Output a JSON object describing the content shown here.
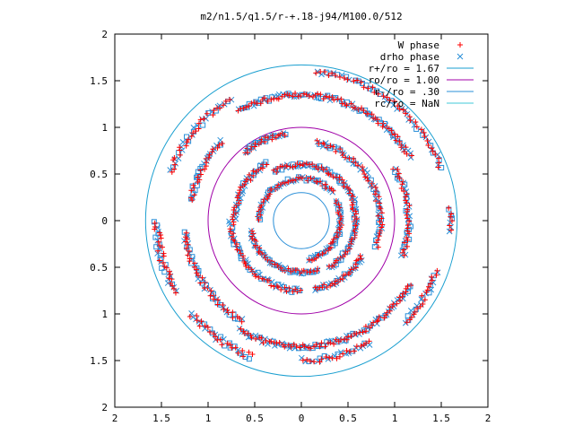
{
  "chart_data": {
    "type": "scatter",
    "title": "m2/n1.5/q1.5/r-+.18-j94/M100.0/512",
    "xlabel": "",
    "ylabel": "",
    "xlim": [
      2,
      -2
    ],
    "ylim": [
      -2,
      2
    ],
    "x_ticks": [
      {
        "value": 2,
        "label": "2"
      },
      {
        "value": 1.5,
        "label": "1.5"
      },
      {
        "value": 1,
        "label": "1"
      },
      {
        "value": 0.5,
        "label": "0.5"
      },
      {
        "value": 0,
        "label": "0"
      },
      {
        "value": -0.5,
        "label": "0.5"
      },
      {
        "value": -1,
        "label": "1"
      },
      {
        "value": -1.5,
        "label": "1.5"
      },
      {
        "value": -2,
        "label": "2"
      }
    ],
    "y_ticks": [
      {
        "value": 2,
        "label": "2"
      },
      {
        "value": 1.5,
        "label": "1.5"
      },
      {
        "value": 1,
        "label": "1"
      },
      {
        "value": 0.5,
        "label": "0.5"
      },
      {
        "value": 0,
        "label": "0"
      },
      {
        "value": -0.5,
        "label": "0.5"
      },
      {
        "value": -1,
        "label": "1"
      },
      {
        "value": -1.5,
        "label": "1.5"
      },
      {
        "value": -2,
        "label": "2"
      }
    ],
    "grid": false,
    "legend_position": "top-right",
    "series": [
      {
        "name": "W phase",
        "kind": "points",
        "marker": "plus",
        "color": "#ff0000"
      },
      {
        "name": "drho phase",
        "kind": "points",
        "marker": "cross",
        "color": "#2a8fd8"
      },
      {
        "name": "r+/ro = 1.67",
        "kind": "circle",
        "radius": 1.67,
        "color": "#1a9fd0"
      },
      {
        "name": "ro/ro = 1.00",
        "kind": "circle",
        "radius": 1.0,
        "color": "#a000a8"
      },
      {
        "name": "r-/ro = .30",
        "kind": "circle",
        "radius": 0.3,
        "color": "#2a8fd8"
      },
      {
        "name": "rc/ro = NaN",
        "kind": "circle",
        "radius": null,
        "color": "#40c8d8"
      }
    ],
    "point_bands": [
      {
        "r": 1.6,
        "a0": 95,
        "a1": 160,
        "n": 40,
        "j": 0.05
      },
      {
        "r": 1.6,
        "a0": 175,
        "a1": 185,
        "n": 6,
        "j": 0.04
      },
      {
        "r": 1.55,
        "a0": 200,
        "a1": 225,
        "n": 18,
        "j": 0.06
      },
      {
        "r": 1.5,
        "a0": 240,
        "a1": 270,
        "n": 20,
        "j": 0.06
      },
      {
        "r": 1.55,
        "a0": 290,
        "a1": 320,
        "n": 22,
        "j": 0.07
      },
      {
        "r": 1.55,
        "a0": 330,
        "a1": 360,
        "n": 24,
        "j": 0.07
      },
      {
        "r": 1.5,
        "a0": 20,
        "a1": 60,
        "n": 26,
        "j": 0.06
      },
      {
        "r": 1.35,
        "a0": 60,
        "a1": 150,
        "n": 70,
        "j": 0.05
      },
      {
        "r": 1.35,
        "a0": 210,
        "a1": 300,
        "n": 70,
        "j": 0.05
      },
      {
        "r": 1.25,
        "a0": 300,
        "a1": 355,
        "n": 35,
        "j": 0.05
      },
      {
        "r": 1.2,
        "a0": 10,
        "a1": 45,
        "n": 22,
        "j": 0.05
      },
      {
        "r": 1.15,
        "a0": 150,
        "a1": 200,
        "n": 30,
        "j": 0.05
      },
      {
        "r": 0.95,
        "a0": 50,
        "a1": 80,
        "n": 20,
        "j": 0.05
      },
      {
        "r": 0.85,
        "a0": 100,
        "a1": 200,
        "n": 45,
        "j": 0.05
      },
      {
        "r": 0.75,
        "a0": 210,
        "a1": 260,
        "n": 25,
        "j": 0.05
      },
      {
        "r": 0.75,
        "a0": 270,
        "a1": 360,
        "n": 40,
        "j": 0.05
      },
      {
        "r": 0.72,
        "a0": 0,
        "a1": 60,
        "n": 28,
        "j": 0.05
      },
      {
        "r": 0.6,
        "a0": 60,
        "a1": 160,
        "n": 40,
        "j": 0.04
      },
      {
        "r": 0.58,
        "a0": 160,
        "a1": 240,
        "n": 32,
        "j": 0.04
      },
      {
        "r": 0.55,
        "a0": 250,
        "a1": 350,
        "n": 38,
        "j": 0.04
      },
      {
        "r": 0.45,
        "a0": 0,
        "a1": 140,
        "n": 40,
        "j": 0.04
      },
      {
        "r": 0.42,
        "a0": 150,
        "a1": 260,
        "n": 34,
        "j": 0.04
      }
    ]
  }
}
